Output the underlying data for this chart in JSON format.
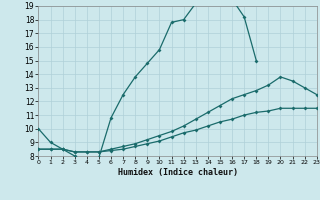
{
  "xlabel": "Humidex (Indice chaleur)",
  "bg_color": "#cde8ec",
  "grid_color": "#b0d0d8",
  "line_color": "#1a6b6b",
  "xmin": 0,
  "xmax": 23,
  "ymin": 8,
  "ymax": 19,
  "curve1_x": [
    0,
    1,
    2,
    3,
    4,
    5,
    6,
    7,
    8,
    9,
    10,
    11,
    12,
    13,
    14,
    15,
    16,
    17,
    18
  ],
  "curve1_y": [
    10.0,
    9.0,
    8.5,
    8.0,
    7.8,
    7.9,
    10.8,
    12.5,
    13.8,
    14.8,
    15.8,
    17.8,
    18.0,
    19.2,
    19.5,
    19.5,
    19.5,
    18.2,
    15.0
  ],
  "curve2_x": [
    0,
    1,
    2,
    3,
    4,
    5,
    6,
    7,
    8,
    9,
    10,
    11,
    12,
    13,
    14,
    15,
    16,
    17,
    18,
    19,
    20,
    21,
    22,
    23
  ],
  "curve2_y": [
    8.5,
    8.5,
    8.5,
    8.3,
    8.3,
    8.3,
    8.5,
    8.7,
    8.9,
    9.2,
    9.5,
    9.8,
    10.2,
    10.7,
    11.2,
    11.7,
    12.2,
    12.5,
    12.8,
    13.2,
    13.8,
    13.5,
    13.0,
    12.5
  ],
  "curve3_x": [
    0,
    1,
    2,
    3,
    4,
    5,
    6,
    7,
    8,
    9,
    10,
    11,
    12,
    13,
    14,
    15,
    16,
    17,
    18,
    19,
    20,
    21,
    22,
    23
  ],
  "curve3_y": [
    8.5,
    8.5,
    8.5,
    8.3,
    8.3,
    8.3,
    8.4,
    8.5,
    8.7,
    8.9,
    9.1,
    9.4,
    9.7,
    9.9,
    10.2,
    10.5,
    10.7,
    11.0,
    11.2,
    11.3,
    11.5,
    11.5,
    11.5,
    11.5
  ]
}
